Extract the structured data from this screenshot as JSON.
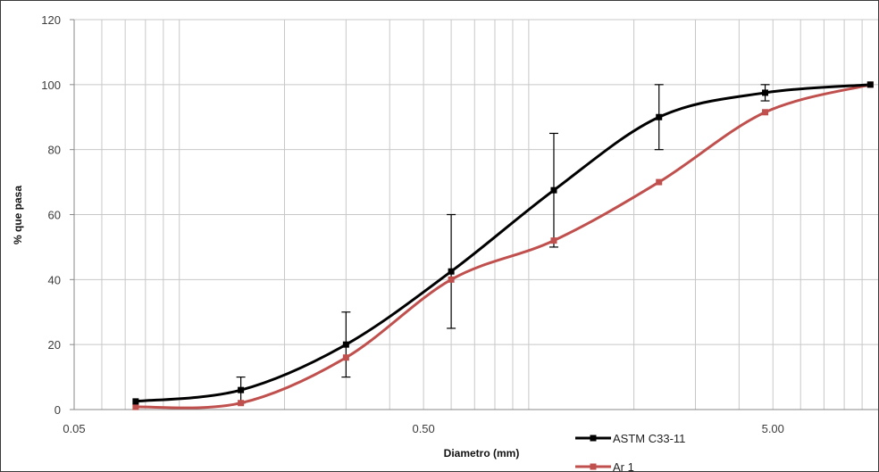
{
  "chart_data": {
    "type": "line",
    "xlabel": "Diametro (mm)",
    "ylabel": "% que pasa",
    "xscale": "log",
    "xlim": [
      0.05,
      10
    ],
    "ylim": [
      0,
      120
    ],
    "x_ticks": [
      {
        "value": 0.05,
        "label": "0.05"
      },
      {
        "value": 0.5,
        "label": "0.50"
      },
      {
        "value": 5,
        "label": "5.00"
      }
    ],
    "y_ticks": [
      0,
      20,
      40,
      60,
      80,
      100,
      120
    ],
    "grid": true,
    "legend": "bottom-right",
    "series": [
      {
        "name": "ASTM C33-11",
        "color": "#000000",
        "x": [
          0.075,
          0.15,
          0.3,
          0.6,
          1.18,
          2.36,
          4.75,
          9.5
        ],
        "values": [
          2.5,
          6,
          20,
          42.5,
          67.5,
          90,
          97.5,
          100
        ],
        "error_high": [
          null,
          10,
          30,
          60,
          85,
          100,
          100,
          null
        ],
        "error_low": [
          null,
          2,
          10,
          25,
          50,
          80,
          95,
          null
        ]
      },
      {
        "name": "Ar 1",
        "color": "#c0504d",
        "x": [
          0.075,
          0.15,
          0.3,
          0.6,
          1.18,
          2.36,
          4.75,
          9.5
        ],
        "values": [
          0.8,
          2,
          16,
          40,
          52,
          70,
          91.5,
          100
        ]
      }
    ]
  }
}
